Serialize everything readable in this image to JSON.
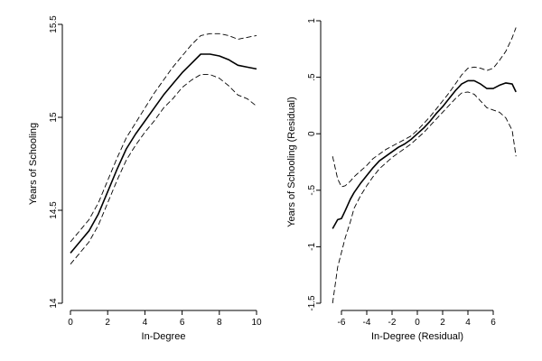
{
  "chart_data": [
    {
      "type": "line",
      "title": "",
      "xlabel": "In-Degree",
      "ylabel": "Years of Schooling",
      "xlim": [
        0,
        10
      ],
      "ylim": [
        14,
        15.5
      ],
      "xticks": [
        0,
        2,
        4,
        6,
        8,
        10
      ],
      "yticks": [
        14,
        14.5,
        15,
        15.5
      ],
      "grid": false,
      "series": [
        {
          "role": "fit",
          "style": "solid",
          "x": [
            0,
            0.5,
            1,
            1.5,
            2,
            2.5,
            3,
            3.5,
            4,
            4.5,
            5,
            5.5,
            6,
            6.5,
            7,
            7.5,
            8,
            8.5,
            9,
            9.5,
            10
          ],
          "values": [
            14.27,
            14.33,
            14.39,
            14.48,
            14.6,
            14.72,
            14.83,
            14.91,
            14.98,
            15.05,
            15.12,
            15.18,
            15.24,
            15.29,
            15.34,
            15.34,
            15.33,
            15.31,
            15.28,
            15.27,
            15.26
          ]
        },
        {
          "role": "ci-upper",
          "style": "dashed",
          "x": [
            0,
            0.5,
            1,
            1.5,
            2,
            2.5,
            3,
            3.5,
            4,
            4.5,
            5,
            5.5,
            6,
            6.5,
            7,
            7.5,
            8,
            8.5,
            9,
            9.5,
            10
          ],
          "values": [
            14.33,
            14.39,
            14.45,
            14.54,
            14.66,
            14.78,
            14.89,
            14.97,
            15.05,
            15.13,
            15.2,
            15.27,
            15.33,
            15.39,
            15.44,
            15.45,
            15.45,
            15.44,
            15.42,
            15.43,
            15.44
          ]
        },
        {
          "role": "ci-lower",
          "style": "dashed",
          "x": [
            0,
            0.5,
            1,
            1.5,
            2,
            2.5,
            3,
            3.5,
            4,
            4.5,
            5,
            5.5,
            6,
            6.5,
            7,
            7.5,
            8,
            8.5,
            9,
            9.5,
            10
          ],
          "values": [
            14.21,
            14.27,
            14.33,
            14.42,
            14.54,
            14.66,
            14.77,
            14.85,
            14.92,
            14.98,
            15.05,
            15.1,
            15.16,
            15.2,
            15.23,
            15.23,
            15.21,
            15.17,
            15.12,
            15.1,
            15.06
          ]
        }
      ]
    },
    {
      "type": "line",
      "title": "",
      "xlabel": "In-Degree (Residual)",
      "ylabel": "Years of Schooling (Residual)",
      "xlim": [
        -7,
        8
      ],
      "ylim": [
        -1.5,
        1
      ],
      "xticks": [
        -6,
        -4,
        -2,
        0,
        2,
        4,
        6
      ],
      "yticks": [
        -1.5,
        -1,
        -0.5,
        0,
        0.5,
        1
      ],
      "xtick_labels": [
        "-6",
        "-4",
        "-2",
        "0",
        "2",
        "4",
        "6"
      ],
      "ytick_labels": [
        "-1.5",
        "-1",
        "-.5",
        "0",
        ".5",
        "1"
      ],
      "grid": false,
      "series": [
        {
          "role": "fit",
          "style": "solid",
          "x": [
            -6.7,
            -6.3,
            -6,
            -5.7,
            -5.3,
            -5,
            -4.5,
            -4,
            -3.5,
            -3,
            -2.5,
            -2,
            -1.5,
            -1,
            -0.5,
            0,
            0.5,
            1,
            1.5,
            2,
            2.5,
            3,
            3.5,
            4,
            4.5,
            5,
            5.5,
            6,
            6.5,
            7,
            7.5,
            7.8
          ],
          "values": [
            -0.84,
            -0.76,
            -0.75,
            -0.68,
            -0.58,
            -0.52,
            -0.44,
            -0.37,
            -0.3,
            -0.24,
            -0.2,
            -0.16,
            -0.12,
            -0.09,
            -0.05,
            0.0,
            0.05,
            0.11,
            0.18,
            0.24,
            0.31,
            0.38,
            0.44,
            0.47,
            0.47,
            0.44,
            0.4,
            0.4,
            0.43,
            0.45,
            0.44,
            0.37
          ]
        },
        {
          "role": "ci-upper",
          "style": "dashed",
          "x": [
            -6.7,
            -6.3,
            -6,
            -5.7,
            -5.3,
            -5,
            -4.5,
            -4,
            -3.5,
            -3,
            -2.5,
            -2,
            -1.5,
            -1,
            -0.5,
            0,
            0.5,
            1,
            1.5,
            2,
            2.5,
            3,
            3.5,
            4,
            4.5,
            5,
            5.5,
            6,
            6.5,
            7,
            7.5,
            7.8
          ],
          "values": [
            -0.2,
            -0.4,
            -0.47,
            -0.46,
            -0.42,
            -0.38,
            -0.33,
            -0.28,
            -0.22,
            -0.18,
            -0.14,
            -0.11,
            -0.08,
            -0.05,
            -0.02,
            0.03,
            0.09,
            0.15,
            0.22,
            0.29,
            0.36,
            0.44,
            0.52,
            0.58,
            0.59,
            0.58,
            0.56,
            0.58,
            0.65,
            0.73,
            0.85,
            0.94
          ]
        },
        {
          "role": "ci-lower",
          "style": "dashed",
          "x": [
            -6.7,
            -6.3,
            -6,
            -5.7,
            -5.3,
            -5,
            -4.5,
            -4,
            -3.5,
            -3,
            -2.5,
            -2,
            -1.5,
            -1,
            -0.5,
            0,
            0.5,
            1,
            1.5,
            2,
            2.5,
            3,
            3.5,
            4,
            4.5,
            5,
            5.5,
            6,
            6.5,
            7,
            7.5,
            7.8
          ],
          "values": [
            -1.5,
            -1.18,
            -1.05,
            -0.92,
            -0.78,
            -0.66,
            -0.55,
            -0.46,
            -0.38,
            -0.31,
            -0.26,
            -0.21,
            -0.17,
            -0.13,
            -0.09,
            -0.04,
            0.01,
            0.07,
            0.13,
            0.19,
            0.25,
            0.31,
            0.36,
            0.37,
            0.35,
            0.29,
            0.23,
            0.21,
            0.19,
            0.14,
            0.03,
            -0.2
          ]
        }
      ]
    }
  ]
}
